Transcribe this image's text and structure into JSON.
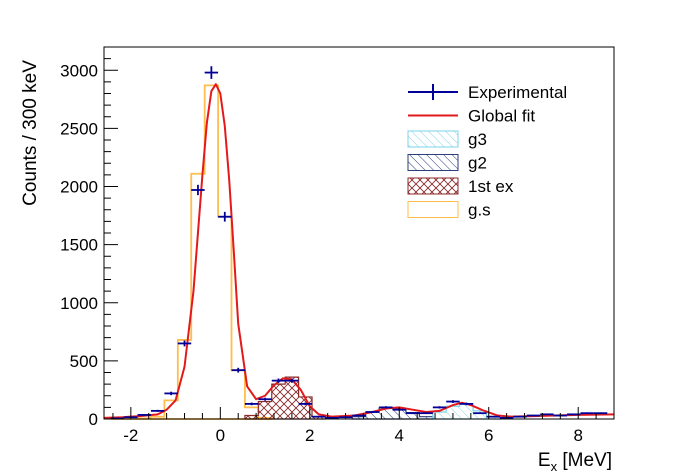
{
  "chart_data": {
    "type": "histogram",
    "xlabel_main": "E",
    "xlabel_sub": "x",
    "xlabel_unit": " [MeV]",
    "ylabel": "Counts / 300 keV",
    "xlim": [
      -2.6,
      8.8
    ],
    "ylim": [
      0,
      3200
    ],
    "x_ticks": [
      -2,
      0,
      2,
      4,
      6,
      8
    ],
    "y_ticks": [
      0,
      500,
      1000,
      1500,
      2000,
      2500,
      3000
    ],
    "bin_width": 0.3,
    "legend": [
      {
        "label": "Experimental",
        "style": "marker",
        "color": "#000099"
      },
      {
        "label": "Global fit",
        "style": "line",
        "color": "#e31a1c"
      },
      {
        "label": "g3",
        "style": "hatch-cyan",
        "color": "#7ad3e8"
      },
      {
        "label": "g2",
        "style": "hatch-navy",
        "color": "#2a3e7a"
      },
      {
        "label": "1st ex",
        "style": "crosshatch",
        "color": "#8b2a2a"
      },
      {
        "label": "g.s",
        "style": "box",
        "color": "#ffbe4c"
      }
    ],
    "series": [
      {
        "name": "Experimental",
        "color": "#000099",
        "x": [
          -2.3,
          -2.0,
          -1.7,
          -1.4,
          -1.1,
          -0.8,
          -0.5,
          -0.2,
          0.1,
          0.4,
          0.7,
          1.0,
          1.3,
          1.6,
          1.9,
          2.2,
          2.5,
          2.8,
          3.1,
          3.4,
          3.7,
          4.0,
          4.3,
          4.6,
          4.9,
          5.2,
          5.5,
          5.8,
          6.1,
          6.4,
          6.7,
          7.0,
          7.3,
          7.6,
          7.9,
          8.2,
          8.5
        ],
        "y": [
          5,
          15,
          35,
          70,
          220,
          650,
          1970,
          2980,
          1740,
          420,
          130,
          170,
          330,
          330,
          130,
          20,
          10,
          15,
          30,
          60,
          100,
          80,
          50,
          50,
          100,
          150,
          130,
          50,
          20,
          10,
          20,
          30,
          40,
          30,
          40,
          50,
          50
        ]
      },
      {
        "name": "Global fit",
        "color": "#e31a1c",
        "x": [
          -2.6,
          -2.2,
          -1.8,
          -1.4,
          -1.2,
          -1.0,
          -0.8,
          -0.6,
          -0.4,
          -0.3,
          -0.2,
          -0.1,
          0.0,
          0.1,
          0.2,
          0.3,
          0.4,
          0.6,
          0.8,
          1.0,
          1.2,
          1.4,
          1.6,
          1.8,
          2.0,
          2.2,
          2.5,
          3.0,
          3.4,
          3.7,
          4.0,
          4.3,
          4.6,
          4.9,
          5.2,
          5.4,
          5.6,
          5.9,
          6.2,
          6.5,
          7.0,
          7.5,
          8.0,
          8.8
        ],
        "y": [
          10,
          15,
          25,
          40,
          80,
          160,
          450,
          1100,
          2100,
          2550,
          2820,
          2880,
          2800,
          2520,
          2050,
          1450,
          820,
          280,
          170,
          200,
          290,
          350,
          340,
          250,
          110,
          40,
          20,
          30,
          60,
          90,
          100,
          80,
          60,
          70,
          120,
          140,
          120,
          70,
          30,
          20,
          25,
          30,
          35,
          40
        ]
      },
      {
        "name": "g.s",
        "color": "#ffbe4c",
        "x": [
          -2.3,
          -2.0,
          -1.7,
          -1.4,
          -1.1,
          -0.8,
          -0.5,
          -0.2,
          0.1,
          0.4,
          0.7,
          1.0
        ],
        "y": [
          0,
          0,
          5,
          20,
          160,
          680,
          2110,
          2870,
          1740,
          420,
          100,
          10
        ]
      },
      {
        "name": "1st ex",
        "color": "#8b2a2a",
        "x": [
          0.7,
          1.0,
          1.3,
          1.6,
          1.9,
          2.2
        ],
        "y": [
          30,
          150,
          300,
          360,
          190,
          20
        ]
      },
      {
        "name": "g2",
        "color": "#2a3e7a",
        "x": [
          3.1,
          3.4,
          3.7,
          4.0,
          4.3,
          4.6
        ],
        "y": [
          20,
          60,
          95,
          90,
          55,
          20
        ]
      },
      {
        "name": "g3",
        "color": "#7ad3e8",
        "x": [
          4.9,
          5.2,
          5.5,
          5.8,
          6.1
        ],
        "y": [
          60,
          110,
          130,
          70,
          20
        ]
      }
    ]
  }
}
